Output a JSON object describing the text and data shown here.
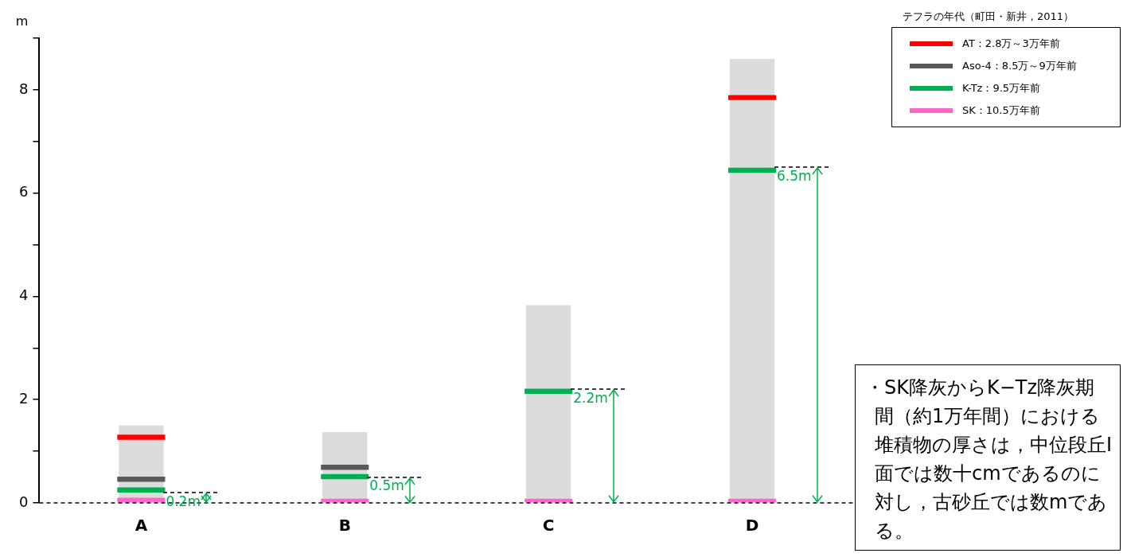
{
  "chart_data": {
    "type": "bar",
    "ylabel": "m",
    "legend_title": "テフラの年代（町田・新井，2011）",
    "categories": [
      "A",
      "B",
      "C",
      "D"
    ],
    "series": [
      {
        "color": "#dcdcdc",
        "values": [
          1.5,
          1.37,
          3.83,
          8.6
        ]
      },
      {
        "name": "AT：2.8万～3万年前",
        "color": "#ff0000",
        "base": [
          1.22,
          null,
          null,
          7.8
        ],
        "values": [
          0.1,
          null,
          null,
          0.1
        ]
      },
      {
        "name": "Aso-4：8.5万～9万年前",
        "color": "#595959",
        "base": [
          0.41,
          0.64,
          null,
          null
        ],
        "values": [
          0.1,
          0.1,
          null,
          null
        ]
      },
      {
        "name": "K-Tz：9.5万年前",
        "color": "#00b050",
        "base": [
          0.2,
          0.46,
          2.11,
          6.39
        ],
        "values": [
          0.1,
          0.1,
          0.1,
          0.1
        ]
      },
      {
        "name": "SK：10.5万年前",
        "color": "#ff66cc",
        "base": [
          0,
          0,
          0,
          0
        ],
        "values": [
          0.1,
          0.08,
          0.08,
          0.08
        ]
      }
    ],
    "ylim": [
      0,
      9
    ],
    "yticks": [
      0,
      {
        "value": 1,
        "label": null
      },
      2,
      {
        "value": 3,
        "label": null
      },
      4,
      {
        "value": 5,
        "label": null
      },
      6,
      {
        "value": 7,
        "label": null
      },
      8,
      {
        "value": 9,
        "label": null
      }
    ],
    "grid": false,
    "legend": "top right",
    "ref_lines": [
      {
        "axis": "y",
        "value": 0,
        "color": "#000000",
        "line_style": "dashed"
      }
    ],
    "annotations": [
      {
        "text": "0.2m",
        "x": "A",
        "y": 0.2
      },
      {
        "text": "0.5m",
        "x": "B",
        "y": 0.5
      },
      {
        "text": "2.2m",
        "x": "C",
        "y": 2.2
      },
      {
        "text": "6.5m",
        "x": "D",
        "y": 6.5
      },
      "・SK降灰からK−Tz降灰期間（約1万年間）における堆積物の厚さは，中位段丘Ⅰ面では数十cmであるのに対し，古砂丘では数mである。"
    ]
  }
}
